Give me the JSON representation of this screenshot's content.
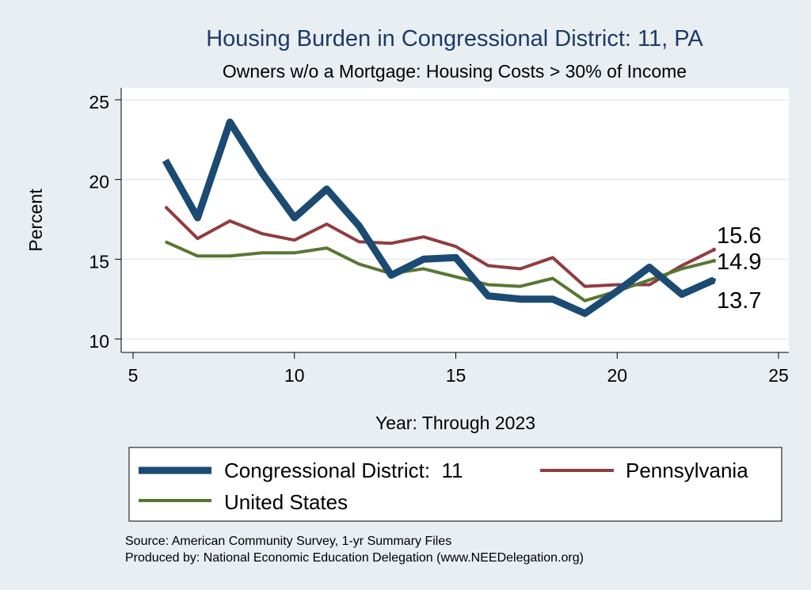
{
  "chart_data": {
    "type": "line",
    "title": "Housing Burden in Congressional District:  11, PA",
    "subtitle": "Owners w/o a Mortgage: Housing Costs > 30% of Income",
    "xlabel": "Year: Through 2023",
    "ylabel": "Percent",
    "xlim": [
      5,
      25
    ],
    "ylim": [
      10,
      25
    ],
    "xticks": [
      5,
      10,
      15,
      20,
      25
    ],
    "yticks": [
      10,
      15,
      20,
      25
    ],
    "grid": true,
    "legend_position": "bottom",
    "x": [
      6,
      7,
      8,
      9,
      10,
      11,
      12,
      13,
      14,
      15,
      16,
      17,
      18,
      19,
      20,
      21,
      22,
      23
    ],
    "series": [
      {
        "name": "Congressional District:  11",
        "color": "#1b4a72",
        "values": [
          21.2,
          17.6,
          23.6,
          20.4,
          17.6,
          19.4,
          17.1,
          14.0,
          15.0,
          15.1,
          12.7,
          12.5,
          12.5,
          11.6,
          13.0,
          14.5,
          12.8,
          13.7
        ],
        "end_label": "13.7"
      },
      {
        "name": "Pennsylvania",
        "color": "#913c40",
        "values": [
          18.3,
          16.3,
          17.4,
          16.6,
          16.2,
          17.2,
          16.1,
          16.0,
          16.4,
          15.8,
          14.6,
          14.4,
          15.1,
          13.3,
          13.4,
          13.4,
          14.6,
          15.6
        ],
        "end_label": "15.6"
      },
      {
        "name": "United States",
        "color": "#587732",
        "values": [
          16.1,
          15.2,
          15.2,
          15.4,
          15.4,
          15.7,
          14.7,
          14.1,
          14.4,
          13.9,
          13.4,
          13.3,
          13.8,
          12.4,
          13.0,
          13.7,
          14.4,
          14.9
        ],
        "end_label": "14.9"
      }
    ]
  },
  "notes": {
    "source": "Source: American Community Survey, 1-yr Summary Files",
    "produced_by": "Produced by: National Economic Education Delegation (www.NEEDelegation.org)"
  }
}
